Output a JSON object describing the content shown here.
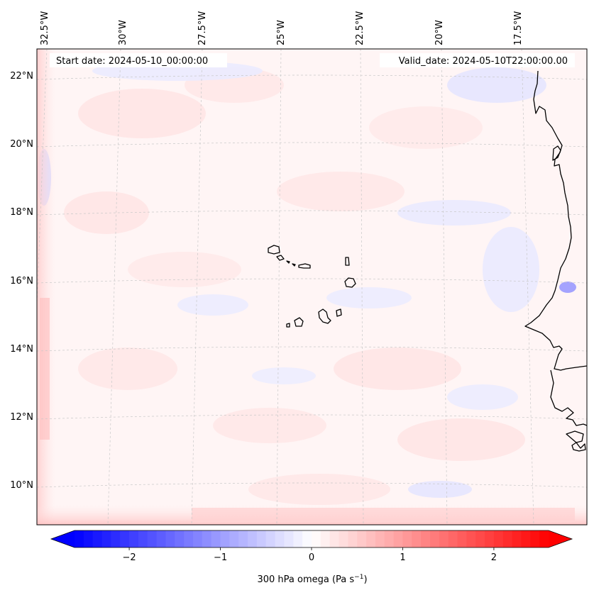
{
  "header": {
    "start_date": "Start date: 2024-05-10_00:00:00",
    "valid_date": "Valid_date: 2024-05-10T22:00:00.00"
  },
  "map": {
    "variable": "300 hPa omega",
    "lon_labels": [
      "32.5°W",
      "30°W",
      "27.5°W",
      "25°W",
      "22.5°W",
      "20°W",
      "17.5°W"
    ],
    "lat_labels": [
      "22°N",
      "20°N",
      "18°N",
      "16°N",
      "14°N",
      "12°N",
      "10°N"
    ],
    "gridlines": true
  },
  "colorbar": {
    "ticks": [
      "−2",
      "−1",
      "0",
      "1",
      "2"
    ],
    "tick_values": [
      -2,
      -1,
      0,
      1,
      2
    ],
    "range": [
      -2.6,
      2.6
    ],
    "extend": "both",
    "label_main": "300 hPa omega (Pa s",
    "label_exp": "−1",
    "label_close": ")",
    "colors": {
      "low": "#0000ff",
      "mid": "#ffffff",
      "high": "#ff0000"
    }
  }
}
